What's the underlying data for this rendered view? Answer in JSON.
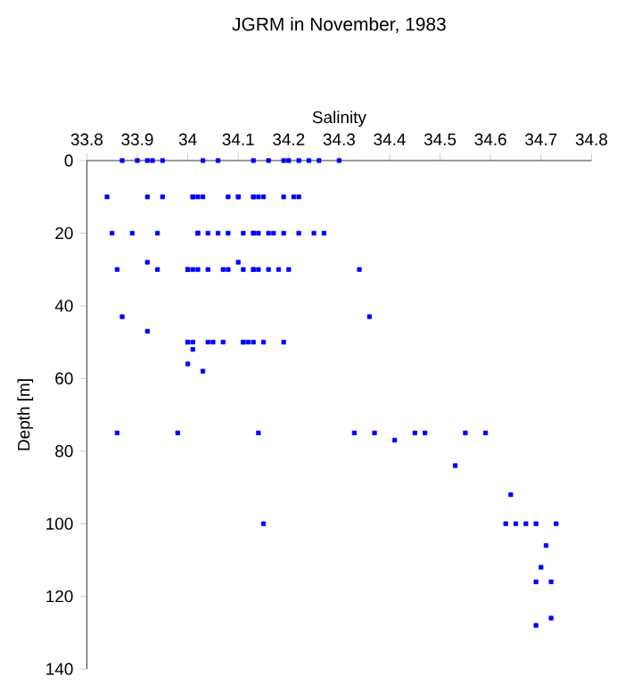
{
  "chart_data": {
    "type": "scatter",
    "title": "JGRM in November, 1983",
    "xlabel": "Salinity",
    "ylabel": "Depth [m]",
    "xlim": [
      33.8,
      34.8
    ],
    "ylim": [
      140,
      0
    ],
    "xticks": [
      33.8,
      33.9,
      34,
      34.1,
      34.2,
      34.3,
      34.4,
      34.5,
      34.6,
      34.7,
      34.8
    ],
    "yticks": [
      0,
      20,
      40,
      60,
      80,
      100,
      120,
      140
    ],
    "marker": "square",
    "grid": false,
    "series": [
      {
        "color": "#0000ff",
        "x": [
          33.87,
          33.9,
          33.92,
          33.93,
          33.95,
          34.03,
          34.06,
          34.13,
          34.16,
          34.19,
          34.2,
          34.22,
          34.24,
          34.26,
          34.3,
          33.84,
          33.92,
          33.95,
          34.01,
          34.01,
          34.02,
          34.03,
          34.08,
          34.1,
          34.1,
          34.13,
          34.13,
          34.14,
          34.15,
          34.19,
          34.21,
          34.22,
          33.85,
          33.89,
          33.94,
          34.02,
          34.02,
          34.04,
          34.06,
          34.08,
          34.11,
          34.13,
          34.13,
          34.14,
          34.16,
          34.17,
          34.19,
          34.22,
          34.25,
          34.27,
          33.86,
          33.94,
          34.0,
          34.0,
          34.01,
          34.02,
          34.04,
          34.07,
          34.08,
          34.11,
          34.13,
          34.13,
          34.14,
          34.16,
          34.18,
          34.2,
          34.34,
          33.92,
          34.1,
          33.87,
          34.36,
          33.92,
          34.0,
          34.0,
          34.01,
          34.04,
          34.05,
          34.07,
          34.11,
          34.11,
          34.12,
          34.13,
          34.15,
          34.19,
          34.01,
          34.0,
          34.03,
          33.86,
          33.98,
          34.14,
          34.33,
          34.37,
          34.45,
          34.47,
          34.55,
          34.59,
          34.41,
          34.15,
          34.53,
          34.64,
          34.63,
          34.65,
          34.67,
          34.69,
          34.73,
          34.71,
          34.7,
          34.69,
          34.72,
          34.72,
          34.69
        ],
        "values": [
          0,
          0,
          0,
          0,
          0,
          0,
          0,
          0,
          0,
          0,
          0,
          0,
          0,
          0,
          0,
          10,
          10,
          10,
          10,
          10,
          10,
          10,
          10,
          10,
          10,
          10,
          10,
          10,
          10,
          10,
          10,
          10,
          20,
          20,
          20,
          20,
          20,
          20,
          20,
          20,
          20,
          20,
          20,
          20,
          20,
          20,
          20,
          20,
          20,
          20,
          30,
          30,
          30,
          30,
          30,
          30,
          30,
          30,
          30,
          30,
          30,
          30,
          30,
          30,
          30,
          30,
          30,
          28,
          28,
          43,
          43,
          47,
          50,
          50,
          50,
          50,
          50,
          50,
          50,
          50,
          50,
          50,
          50,
          50,
          52,
          56,
          58,
          75,
          75,
          75,
          75,
          75,
          75,
          75,
          75,
          75,
          77,
          100,
          84,
          92,
          100,
          100,
          100,
          100,
          100,
          106,
          112,
          116,
          116,
          126,
          128
        ]
      }
    ]
  }
}
